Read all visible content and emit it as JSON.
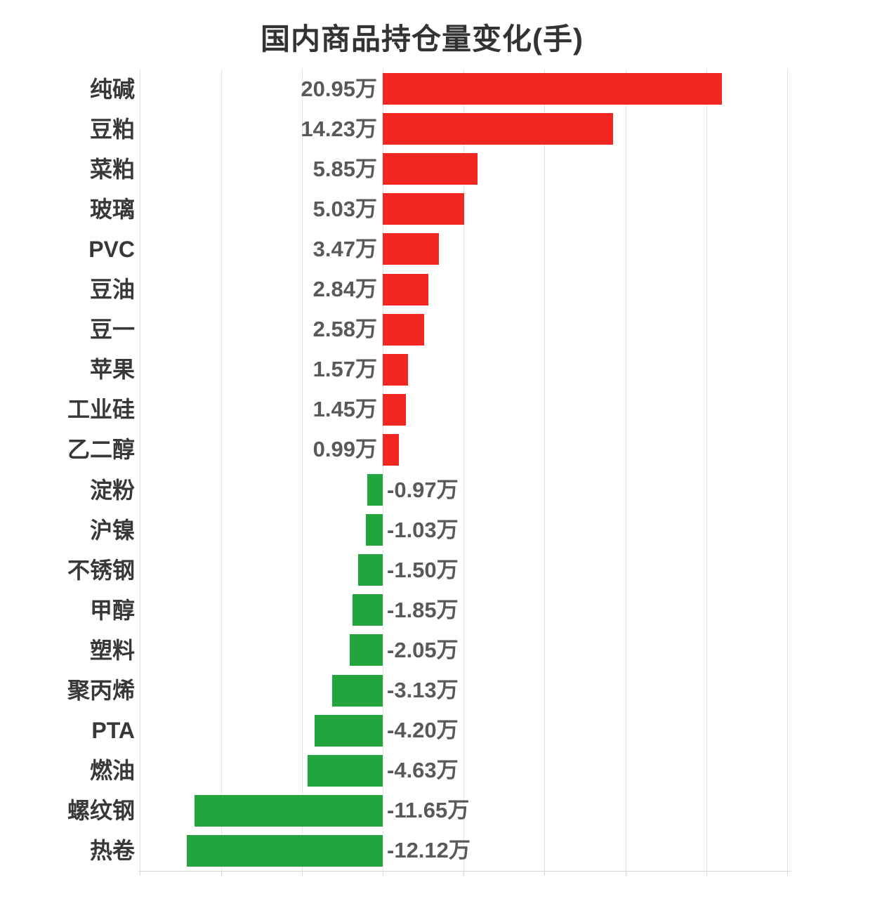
{
  "chart_data": {
    "type": "bar",
    "orientation": "horizontal",
    "title": "国内商品持仓量变化(手)",
    "unit": "万",
    "xlabel": "",
    "ylabel": "",
    "xlim": [
      -15,
      25
    ],
    "grid": true,
    "grid_step": 5,
    "categories": [
      "纯碱",
      "豆粕",
      "菜粕",
      "玻璃",
      "PVC",
      "豆油",
      "豆一",
      "苹果",
      "工业硅",
      "乙二醇",
      "淀粉",
      "沪镍",
      "不锈钢",
      "甲醇",
      "塑料",
      "聚丙烯",
      "PTA",
      "燃油",
      "螺纹钢",
      "热卷"
    ],
    "values": [
      20.95,
      14.23,
      5.85,
      5.03,
      3.47,
      2.84,
      2.58,
      1.57,
      1.45,
      0.99,
      -0.97,
      -1.03,
      -1.5,
      -1.85,
      -2.05,
      -3.13,
      -4.2,
      -4.63,
      -11.65,
      -12.12
    ],
    "value_labels": [
      "20.95万",
      "14.23万",
      "5.85万",
      "5.03万",
      "3.47万",
      "2.84万",
      "2.58万",
      "1.57万",
      "1.45万",
      "0.99万",
      "-0.97万",
      "-1.03万",
      "-1.50万",
      "-1.85万",
      "-2.05万",
      "-3.13万",
      "-4.20万",
      "-4.63万",
      "-11.65万",
      "-12.12万"
    ],
    "colors": {
      "positive_bar": "#f42621",
      "negative_bar": "#23a53e",
      "gridline": "#e4e4e4",
      "axis_line": "#d8d8d8",
      "category_text": "#383838",
      "value_text": "#595959",
      "title_text": "#333333",
      "background": "#ffffff"
    }
  }
}
